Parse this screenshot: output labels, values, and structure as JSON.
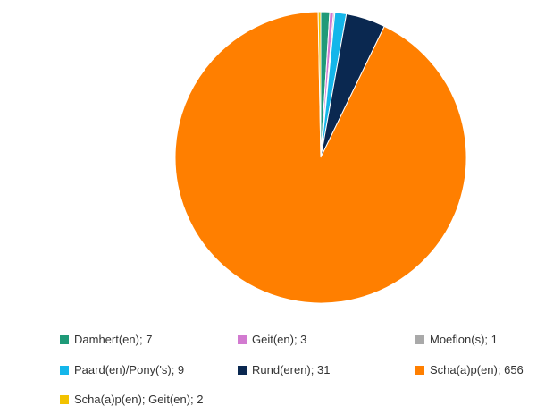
{
  "chart_data": {
    "type": "pie",
    "title": "",
    "slices": [
      {
        "label": "Damhert(en)",
        "value": 7,
        "color": "#1f9a78"
      },
      {
        "label": "Geit(en)",
        "value": 3,
        "color": "#d27ad0"
      },
      {
        "label": "Moeflon(s)",
        "value": 1,
        "color": "#a9a9a9"
      },
      {
        "label": "Paard(en)/Pony('s)",
        "value": 9,
        "color": "#14b6ea"
      },
      {
        "label": "Rund(eren)",
        "value": 31,
        "color": "#0a2850"
      },
      {
        "label": "Scha(a)p(en)",
        "value": 656,
        "color": "#ff7f00"
      },
      {
        "label": "Scha(a)p(en); Geit(en)",
        "value": 2,
        "color": "#f2c200"
      }
    ],
    "legend_labels": [
      "Damhert(en); 7",
      "Geit(en); 3",
      "Moeflon(s); 1",
      "Paard(en)/Pony('s); 9",
      "Rund(eren); 31",
      "Scha(a)p(en); 656",
      "Scha(a)p(en); Geit(en); 2"
    ],
    "legend_position": "bottom"
  }
}
